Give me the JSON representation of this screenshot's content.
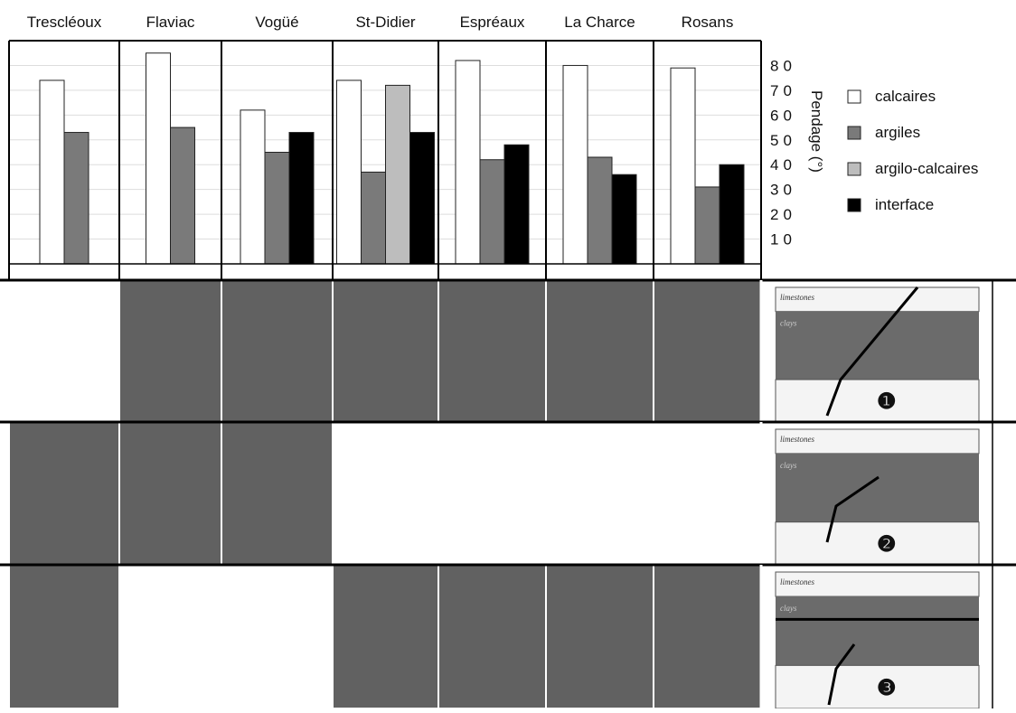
{
  "chart_data": {
    "type": "bar",
    "y_label": "Pendage (°)",
    "categories": [
      "Trescléoux",
      "Flaviac",
      "Vogüé",
      "St-Didier",
      "Espréaux",
      "La Charce",
      "Rosans"
    ],
    "series": [
      {
        "name": "calcaires",
        "color": "#ffffff",
        "values": [
          74,
          85,
          62,
          74,
          82,
          80,
          79
        ]
      },
      {
        "name": "argiles",
        "color": "#7a7a7a",
        "values": [
          53,
          55,
          45,
          37,
          42,
          43,
          31
        ]
      },
      {
        "name": "argilo-calcaires",
        "color": "#bdbdbd",
        "values": [
          null,
          null,
          null,
          72,
          null,
          null,
          null
        ]
      },
      {
        "name": "interface",
        "color": "#000000",
        "values": [
          null,
          null,
          53,
          53,
          48,
          36,
          40
        ]
      }
    ],
    "ylim": [
      0,
      90
    ],
    "yticks": [
      10,
      20,
      30,
      40,
      50,
      60,
      70,
      80
    ],
    "grid": true,
    "legend": "right"
  },
  "matrix": {
    "rows": [
      {
        "label": "❶",
        "cells": [
          false,
          true,
          true,
          true,
          true,
          true,
          true
        ]
      },
      {
        "label": "❷",
        "cells": [
          true,
          true,
          true,
          false,
          false,
          false,
          false
        ]
      },
      {
        "label": "❸",
        "cells": [
          true,
          false,
          false,
          true,
          true,
          true,
          true
        ]
      }
    ],
    "layer_top": "limestones",
    "layer_mid": "clays"
  }
}
